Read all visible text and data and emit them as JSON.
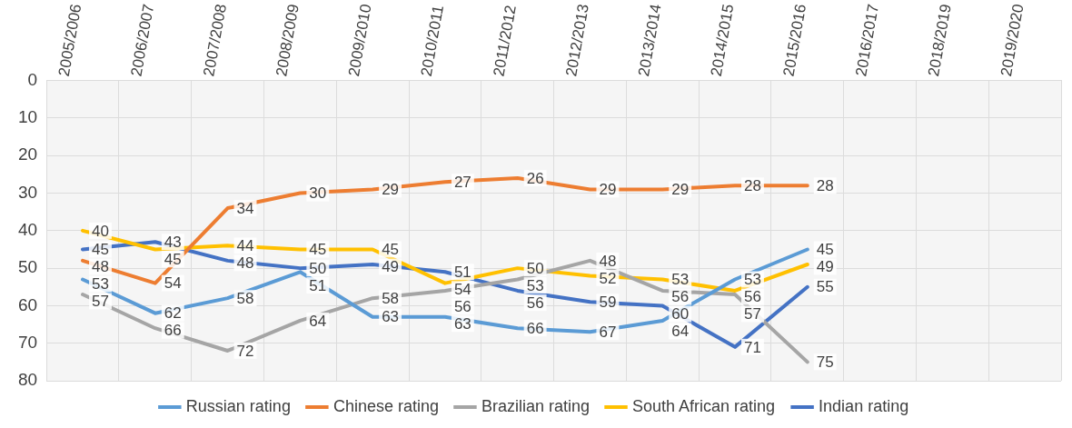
{
  "chart_data": {
    "type": "line",
    "categories": [
      "2005/2006",
      "2006/2007",
      "2007/2008",
      "2008/2009",
      "2009/2010",
      "2010/2011",
      "2011/2012",
      "2012/2013",
      "2013/2014",
      "2014/2015",
      "2015/2016",
      "2016/2017",
      "2018/2019",
      "2019/2020"
    ],
    "series": [
      {
        "name": "Russian rating",
        "color": "#5b9bd5",
        "values": [
          53,
          62,
          58,
          51,
          63,
          63,
          66,
          67,
          64,
          53,
          45,
          null,
          null,
          null
        ]
      },
      {
        "name": "Chinese rating",
        "color": "#ed7d31",
        "values": [
          48,
          54,
          34,
          30,
          29,
          27,
          26,
          29,
          29,
          28,
          28,
          null,
          null,
          null
        ]
      },
      {
        "name": "Brazilian rating",
        "color": "#a5a5a5",
        "values": [
          57,
          66,
          72,
          64,
          58,
          56,
          53,
          48,
          56,
          57,
          75,
          null,
          null,
          null
        ]
      },
      {
        "name": "South African rating",
        "color": "#ffc000",
        "values": [
          40,
          45,
          44,
          45,
          45,
          54,
          50,
          52,
          53,
          56,
          49,
          null,
          null,
          null
        ]
      },
      {
        "name": "Indian rating",
        "color": "#4472c4",
        "values": [
          45,
          43,
          48,
          50,
          49,
          51,
          56,
          59,
          60,
          71,
          55,
          null,
          null,
          null
        ]
      }
    ],
    "ylim": [
      80,
      0
    ],
    "yticks": [
      0,
      10,
      20,
      30,
      40,
      50,
      60,
      70,
      80
    ],
    "grid": true,
    "legend": "bottom",
    "data_labels": true,
    "marker": "none",
    "line_style": "solid"
  }
}
